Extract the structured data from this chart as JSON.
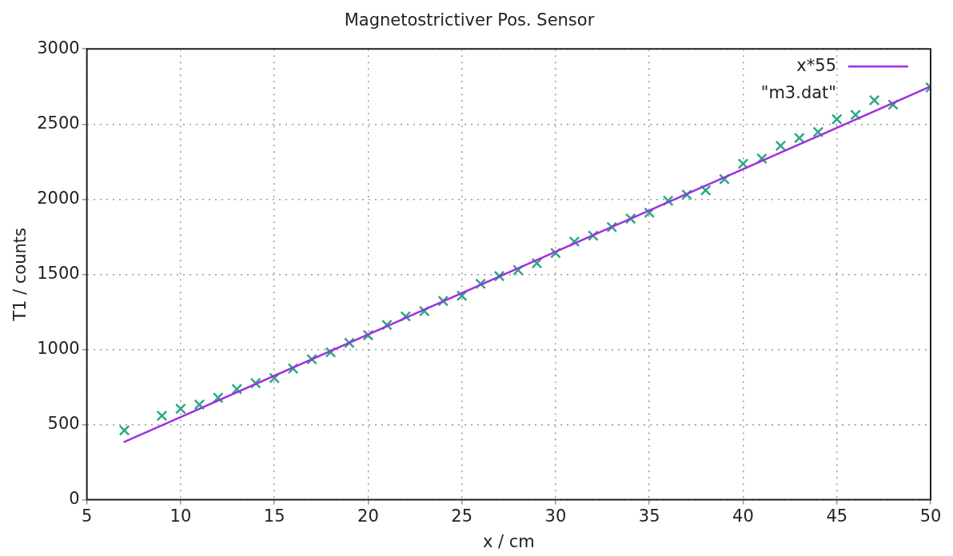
{
  "chart_data": {
    "type": "scatter",
    "title": "Magnetostrictiver Pos. Sensor",
    "xlabel": "x / cm",
    "ylabel": "T1 / counts",
    "xlim": [
      5,
      50
    ],
    "xticks": [
      5,
      10,
      15,
      20,
      25,
      30,
      35,
      40,
      45,
      50
    ],
    "ylim": [
      0,
      3000
    ],
    "yticks": [
      0,
      500,
      1000,
      1500,
      2000,
      2500,
      3000
    ],
    "grid": true,
    "legend": "top right",
    "series": [
      {
        "type": "line",
        "name": "x*55",
        "color": "#a030e0",
        "marker": "none",
        "x": [
          7,
          50
        ],
        "values": [
          385,
          2750
        ]
      },
      {
        "type": "scatter",
        "name": "\"m3.dat\"",
        "color": "#2aa882",
        "marker": "cross",
        "x": [
          7,
          9,
          10,
          11,
          12,
          13,
          14,
          15,
          16,
          17,
          18,
          19,
          20,
          21,
          22,
          23,
          24,
          25,
          26,
          27,
          28,
          29,
          30,
          31,
          32,
          33,
          34,
          35,
          36,
          37,
          38,
          39,
          40,
          41,
          42,
          43,
          44,
          45,
          46,
          47,
          48,
          50
        ],
        "values": [
          462,
          559,
          605,
          633,
          679,
          736,
          776,
          810,
          873,
          935,
          981,
          1044,
          1095,
          1163,
          1220,
          1255,
          1323,
          1357,
          1437,
          1488,
          1528,
          1574,
          1642,
          1717,
          1757,
          1814,
          1871,
          1910,
          1990,
          2030,
          2059,
          2133,
          2236,
          2270,
          2355,
          2407,
          2447,
          2532,
          2561,
          2658,
          2629,
          2743
        ]
      }
    ]
  }
}
